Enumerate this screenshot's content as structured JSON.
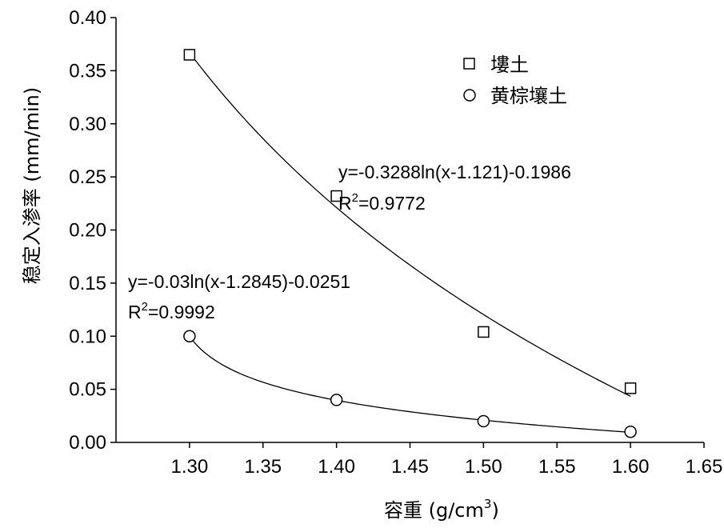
{
  "chart_data": {
    "type": "scatter",
    "title": "",
    "xlabel": "容重 (g/cm",
    "xlabel_sup": "3",
    "xlabel_end": ")",
    "ylabel": "稳定入渗率 (mm/min)",
    "xlim": [
      1.25,
      1.65
    ],
    "ylim": [
      0.0,
      0.4
    ],
    "x_ticks": [
      "1.30",
      "1.35",
      "1.40",
      "1.45",
      "1.50",
      "1.55",
      "1.60",
      "1.65"
    ],
    "y_ticks": [
      "0.00",
      "0.05",
      "0.10",
      "0.15",
      "0.20",
      "0.25",
      "0.30",
      "0.35",
      "0.40"
    ],
    "grid": false,
    "legend_position": "top-right",
    "series": [
      {
        "name": "塿土",
        "marker": "square",
        "x": [
          1.3,
          1.4,
          1.5,
          1.6
        ],
        "y": [
          0.365,
          0.232,
          0.104,
          0.051
        ],
        "fit": {
          "a": -0.3288,
          "c": 1.121,
          "b": -0.1986
        },
        "equation": "y=-0.3288ln(x-1.121)-0.1986",
        "r2_prefix": "R",
        "r2_sup": "2",
        "r2_value": "=0.9772"
      },
      {
        "name": "黄棕壤土",
        "marker": "circle",
        "x": [
          1.3,
          1.4,
          1.5,
          1.6
        ],
        "y": [
          0.1,
          0.04,
          0.02,
          0.01
        ],
        "fit": {
          "a": -0.03,
          "c": 1.2845,
          "b": -0.0251
        },
        "equation": "y=-0.03ln(x-1.2845)-0.0251",
        "r2_prefix": "R",
        "r2_sup": "2",
        "r2_value": "=0.9992"
      }
    ]
  }
}
